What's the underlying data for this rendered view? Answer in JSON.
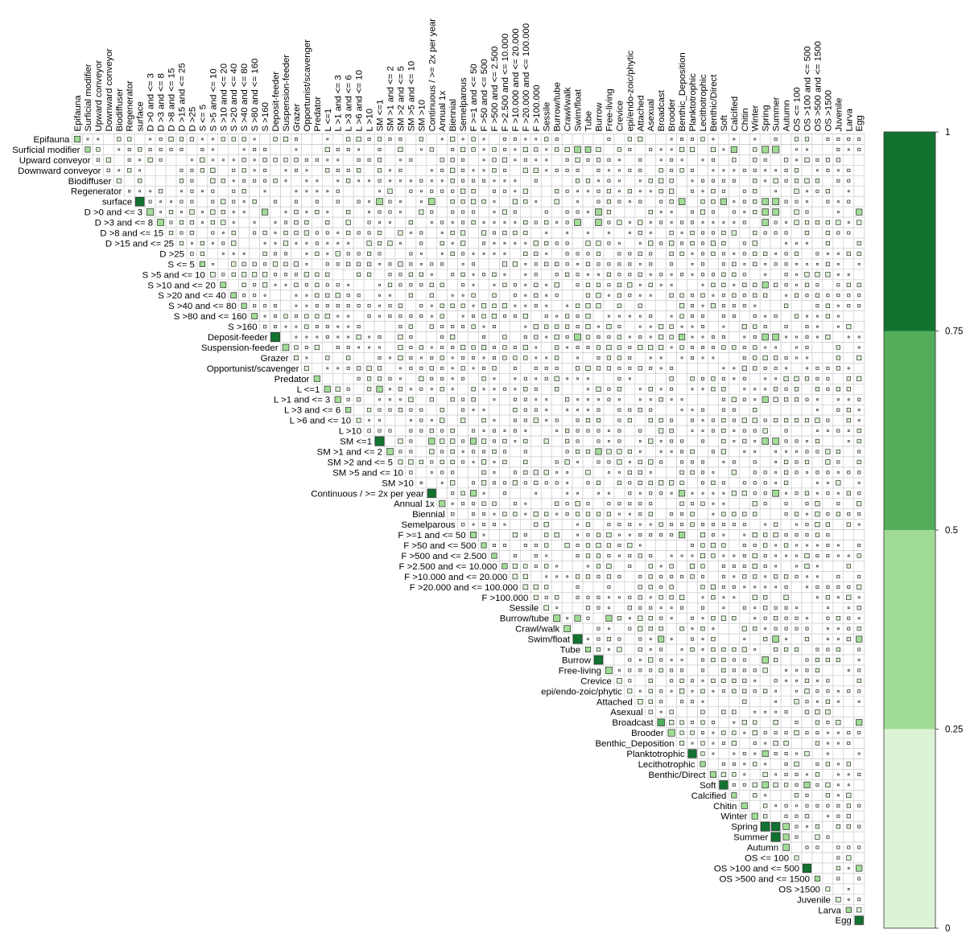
{
  "chart_data": {
    "type": "heatmap",
    "subtype": "upper-triangular correlation matrix (square size and green shade encode value)",
    "variables": [
      "Epifauna",
      "Surficial modifier",
      "Upward conveyor",
      "Downward conveyor",
      "Biodiffuser",
      "Regenerator",
      "surface",
      "D >0 and <= 3",
      "D >3 and <= 8",
      "D >8 and <= 15",
      "D >15 and <= 25",
      "D >25",
      "S <= 5",
      "S >5 and <= 10",
      "S >10 and <= 20",
      "S >20 and <= 40",
      "S >40 and <= 80",
      "S >80 and <= 160",
      "S >160",
      "Deposit-feeder",
      "Suspension-feeder",
      "Grazer",
      "Opportunist/scavenger",
      "Predator",
      "L <=1",
      "L >1 and <= 3",
      "L >3 and <= 6",
      "L >6 and <= 10",
      "L >10",
      "SM <=1",
      "SM >1 and <= 2",
      "SM >2 and <= 5",
      "SM >5 and <= 10",
      "SM >10",
      "Continuous / >= 2x per year",
      "Annual 1x",
      "Biennial",
      "Semelparous",
      "F >=1 and <= 50",
      "F >50 and <= 500",
      "F >500 and <= 2.500",
      "F >2.500 and <= 10.000",
      "F >10.000 and <= 20.000",
      "F >20.000 and <= 100.000",
      "F >100.000",
      "Sessile",
      "Burrow/tube",
      "Crawl/walk",
      "Swim/float",
      "Tube",
      "Burrow",
      "Free-living",
      "Crevice",
      "epi/endo-zoic/phytic",
      "Attached",
      "Asexual",
      "Broadcast",
      "Brooder",
      "Benthic_Deposition",
      "Planktotrophic",
      "Lecithotrophic",
      "Benthic/Direct",
      "Soft",
      "Calcified",
      "Chitin",
      "Winter",
      "Spring",
      "Summer",
      "Autumn",
      "OS <= 100",
      "OS >100 and <= 500",
      "OS >500 and <= 1500",
      "OS >1500",
      "Juvenile",
      "Larva",
      "Egg"
    ],
    "diagonal_values": [
      0.4,
      0.3,
      0.1,
      0.1,
      0.2,
      0.05,
      0.85,
      0.5,
      0.45,
      0.15,
      0.15,
      0.1,
      0.3,
      0.25,
      0.35,
      0.35,
      0.3,
      0.35,
      0.1,
      0.9,
      0.45,
      0.2,
      0.2,
      0.4,
      0.4,
      0.4,
      0.3,
      0.2,
      0.1,
      0.9,
      0.45,
      0.2,
      0.1,
      0.05,
      0.8,
      0.4,
      0.1,
      0.1,
      0.4,
      0.3,
      0.3,
      0.3,
      0.25,
      0.25,
      0.2,
      0.25,
      0.5,
      0.45,
      0.9,
      0.3,
      0.85,
      0.5,
      0.25,
      0.2,
      0.25,
      0.15,
      0.55,
      0.5,
      0.2,
      0.8,
      0.3,
      0.4,
      0.8,
      0.3,
      0.4,
      0.4,
      0.9,
      0.9,
      0.45,
      0.2,
      0.8,
      0.3,
      0.2,
      0.25,
      0.3,
      0.8
    ],
    "strong_offdiagonal": [
      {
        "row": "Spring",
        "col": "Summer",
        "value": 0.8
      },
      {
        "row": "Surficial modifier",
        "col": "Swim/float",
        "value": 0.45
      },
      {
        "row": "Surficial modifier",
        "col": "Spring",
        "value": 0.5
      },
      {
        "row": "Surficial modifier",
        "col": "Summer",
        "value": 0.5
      },
      {
        "row": "Surficial modifier",
        "col": "Tube",
        "value": 0.35
      },
      {
        "row": "Surficial modifier",
        "col": "Calcified",
        "value": 0.4
      },
      {
        "row": "surface",
        "col": "SM <=1",
        "value": 0.45
      },
      {
        "row": "surface",
        "col": "Continuous / >= 2x per year",
        "value": 0.45
      },
      {
        "row": "surface",
        "col": "Benthic_Deposition",
        "value": 0.45
      },
      {
        "row": "surface",
        "col": "Soft",
        "value": 0.4
      },
      {
        "row": "surface",
        "col": "Spring",
        "value": 0.45
      },
      {
        "row": "surface",
        "col": "Summer",
        "value": 0.45
      },
      {
        "row": "D >0 and <= 3",
        "col": "S >160",
        "value": 0.4
      },
      {
        "row": "D >0 and <= 3",
        "col": "Burrow",
        "value": 0.45
      },
      {
        "row": "D >0 and <= 3",
        "col": "Spring",
        "value": 0.45
      },
      {
        "row": "D >0 and <= 3",
        "col": "Summer",
        "value": 0.45
      },
      {
        "row": "D >0 and <= 3",
        "col": "Egg",
        "value": 0.4
      },
      {
        "row": "D >3 and <= 8",
        "col": "Swim/float",
        "value": 0.45
      },
      {
        "row": "D >3 and <= 8",
        "col": "Burrow",
        "value": 0.45
      },
      {
        "row": "D >3 and <= 8",
        "col": "Spring",
        "value": 0.45
      },
      {
        "row": "S >10 and <= 20",
        "col": "Spring",
        "value": 0.4
      },
      {
        "row": "Deposit-feeder",
        "col": "Swim/float",
        "value": 0.45
      },
      {
        "row": "Deposit-feeder",
        "col": "Benthic_Deposition",
        "value": 0.4
      },
      {
        "row": "Deposit-feeder",
        "col": "Spring",
        "value": 0.45
      },
      {
        "row": "Deposit-feeder",
        "col": "Summer",
        "value": 0.45
      },
      {
        "row": "L <=1",
        "col": "SM <=1",
        "value": 0.4
      },
      {
        "row": "L >1 and <= 3",
        "col": "Spring",
        "value": 0.4
      },
      {
        "row": "SM <=1",
        "col": "Continuous / >= 2x per year",
        "value": 0.4
      },
      {
        "row": "SM <=1",
        "col": "F >=1 and <= 50",
        "value": 0.4
      },
      {
        "row": "SM <=1",
        "col": "Spring",
        "value": 0.45
      },
      {
        "row": "SM <=1",
        "col": "Summer",
        "value": 0.45
      },
      {
        "row": "SM >1 and <= 2",
        "col": "Burrow",
        "value": 0.4
      },
      {
        "row": "Continuous / >= 2x per year",
        "col": "F >=1 and <= 50",
        "value": 0.4
      },
      {
        "row": "Continuous / >= 2x per year",
        "col": "Benthic_Deposition",
        "value": 0.4
      },
      {
        "row": "Continuous / >= 2x per year",
        "col": "Summer",
        "value": 0.45
      },
      {
        "row": "F >=1 and <= 50",
        "col": "Benthic_Deposition",
        "value": 0.4
      },
      {
        "row": "Burrow/tube",
        "col": "Swim/float",
        "value": 0.4
      },
      {
        "row": "Burrow/tube",
        "col": "Free-living",
        "value": 0.4
      },
      {
        "row": "Swim/float",
        "col": "Broadcast",
        "value": 0.4
      },
      {
        "row": "Swim/float",
        "col": "Summer",
        "value": 0.45
      },
      {
        "row": "Swim/float",
        "col": "Egg",
        "value": 0.4
      },
      {
        "row": "Burrow",
        "col": "Spring",
        "value": 0.45
      },
      {
        "row": "Broadcast",
        "col": "Egg",
        "value": 0.4
      },
      {
        "row": "Planktotrophic",
        "col": "Spring",
        "value": 0.4
      },
      {
        "row": "Soft",
        "col": "Spring",
        "value": 0.45
      },
      {
        "row": "Soft",
        "col": "OS >100 and <= 500",
        "value": 0.4
      },
      {
        "row": "Spring",
        "col": "Autumn",
        "value": 0.45
      },
      {
        "row": "Summer",
        "col": "Autumn",
        "value": 0.4
      },
      {
        "row": "OS >100 and <= 500",
        "col": "Egg",
        "value": 0.4
      }
    ],
    "colorbar": {
      "range": [
        0,
        1
      ],
      "ticks": [
        "1",
        "0.75",
        "0.5",
        "0.25",
        "0"
      ],
      "bins": [
        {
          "from": 0,
          "to": 0.25,
          "color": "#ddf3d6"
        },
        {
          "from": 0.25,
          "to": 0.5,
          "color": "#a1dc96"
        },
        {
          "from": 0.5,
          "to": 0.75,
          "color": "#52ae5b"
        },
        {
          "from": 0.75,
          "to": 1,
          "color": "#127331"
        }
      ]
    },
    "title": "",
    "xlabel": "",
    "ylabel": ""
  }
}
